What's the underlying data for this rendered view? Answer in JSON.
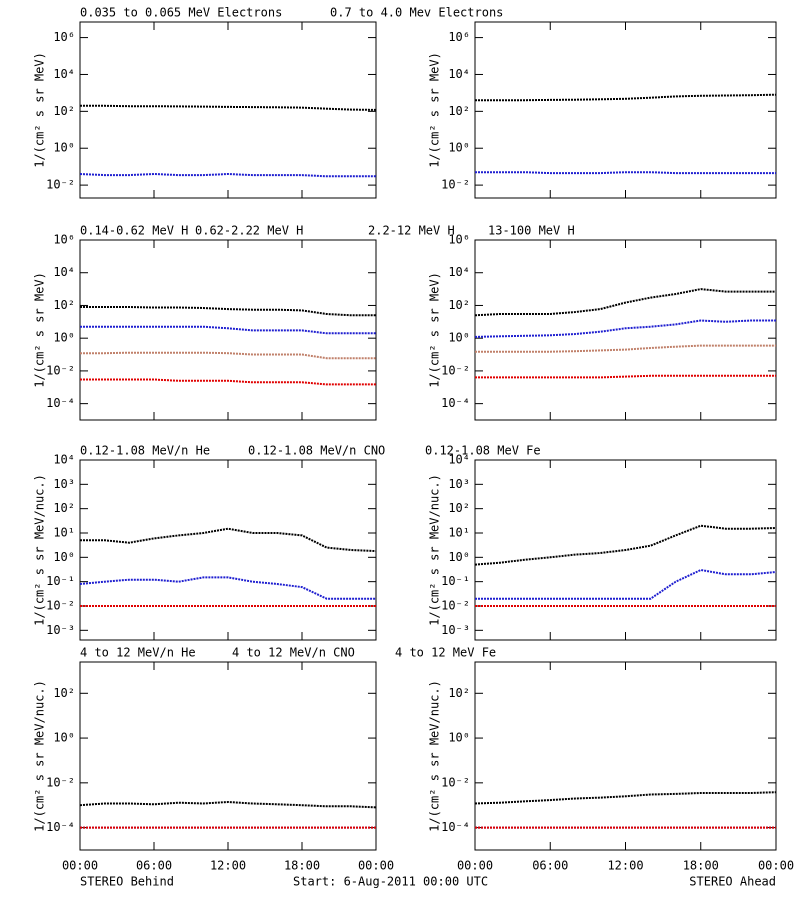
{
  "panels": [
    "STEREO Behind",
    "STEREO Ahead"
  ],
  "start": "Start:  6-Aug-2011 00:00 UTC",
  "chart_data": [
    {
      "type": "scatter",
      "log_y": true,
      "ylabel": "1/(cm² s sr MeV)",
      "x": [
        0,
        2,
        4,
        6,
        8,
        10,
        12,
        14,
        16,
        18,
        20,
        22,
        24
      ],
      "xlim": [
        0,
        24
      ],
      "xticks": [
        0,
        6,
        12,
        18,
        24
      ],
      "ylim": [
        0.002,
        7000000
      ],
      "yticks": [
        {
          "value": 0.01,
          "label": "10⁻²"
        },
        {
          "value": 1,
          "label": "10⁰"
        },
        {
          "value": 100,
          "label": "10²"
        },
        {
          "value": 10000,
          "label": "10⁴"
        },
        {
          "value": 1000000,
          "label": "10⁶"
        }
      ],
      "series": [
        {
          "name": "0.035 to 0.065 MeV Electrons",
          "color": "#000000",
          "values": [
            [
              200,
              200,
              190,
              190,
              185,
              180,
              175,
              170,
              165,
              160,
              140,
              125,
              120
            ],
            [
              400,
              400,
              400,
              420,
              430,
              450,
              480,
              550,
              650,
              700,
              720,
              750,
              800
            ]
          ]
        },
        {
          "name": "0.7 to 4.0 Mev Electrons",
          "color": "#1f1fd0",
          "values": [
            [
              0.04,
              0.035,
              0.035,
              0.04,
              0.035,
              0.035,
              0.04,
              0.035,
              0.035,
              0.035,
              0.03,
              0.03,
              0.03
            ],
            [
              0.05,
              0.05,
              0.05,
              0.045,
              0.045,
              0.045,
              0.05,
              0.05,
              0.045,
              0.045,
              0.045,
              0.045,
              0.045
            ]
          ]
        }
      ]
    },
    {
      "type": "scatter",
      "log_y": true,
      "ylabel": "1/(cm² s sr MeV)",
      "x": [
        0,
        2,
        4,
        6,
        8,
        10,
        12,
        14,
        16,
        18,
        20,
        22,
        24
      ],
      "xlim": [
        0,
        24
      ],
      "xticks": [
        0,
        6,
        12,
        18,
        24
      ],
      "ylim": [
        1e-05,
        1000000
      ],
      "yticks": [
        {
          "value": 0.0001,
          "label": "10⁻⁴"
        },
        {
          "value": 0.01,
          "label": "10⁻²"
        },
        {
          "value": 1,
          "label": "10⁰"
        },
        {
          "value": 100,
          "label": "10²"
        },
        {
          "value": 10000,
          "label": "10⁴"
        },
        {
          "value": 1000000,
          "label": "10⁶"
        }
      ],
      "series": [
        {
          "name": "0.14-0.62 MeV H",
          "color": "#000000",
          "values": [
            [
              80,
              80,
              80,
              75,
              75,
              70,
              60,
              55,
              55,
              50,
              30,
              25,
              25
            ],
            [
              25,
              30,
              30,
              30,
              40,
              60,
              150,
              300,
              500,
              1000,
              700,
              700,
              700
            ]
          ]
        },
        {
          "name": "0.62-2.22 MeV H",
          "color": "#1f1fd0",
          "values": [
            [
              5,
              5,
              5,
              5,
              5,
              5,
              4,
              3,
              3,
              3,
              2,
              2,
              2
            ],
            [
              1.2,
              1.3,
              1.4,
              1.5,
              1.8,
              2.5,
              4,
              5,
              7,
              12,
              10,
              12,
              12
            ]
          ]
        },
        {
          "name": "2.2-12 MeV H",
          "color": "#c0806a",
          "values": [
            [
              0.12,
              0.12,
              0.13,
              0.13,
              0.13,
              0.13,
              0.12,
              0.1,
              0.1,
              0.1,
              0.06,
              0.06,
              0.06
            ],
            [
              0.15,
              0.15,
              0.15,
              0.15,
              0.16,
              0.18,
              0.2,
              0.25,
              0.3,
              0.35,
              0.35,
              0.35,
              0.35
            ]
          ]
        },
        {
          "name": "13-100 MeV H",
          "color": "#e00000",
          "values": [
            [
              0.003,
              0.003,
              0.003,
              0.003,
              0.0025,
              0.0025,
              0.0025,
              0.002,
              0.002,
              0.002,
              0.0015,
              0.0015,
              0.0015
            ],
            [
              0.004,
              0.004,
              0.004,
              0.004,
              0.004,
              0.004,
              0.0045,
              0.005,
              0.005,
              0.005,
              0.005,
              0.005,
              0.005
            ]
          ]
        }
      ]
    },
    {
      "type": "scatter",
      "log_y": true,
      "ylabel": "1/(cm² s sr MeV/nuc.)",
      "x": [
        0,
        2,
        4,
        6,
        8,
        10,
        12,
        14,
        16,
        18,
        20,
        22,
        24
      ],
      "xlim": [
        0,
        24
      ],
      "xticks": [
        0,
        6,
        12,
        18,
        24
      ],
      "ylim": [
        0.0004,
        10000
      ],
      "yticks": [
        {
          "value": 0.001,
          "label": "10⁻³"
        },
        {
          "value": 0.01,
          "label": "10⁻²"
        },
        {
          "value": 0.1,
          "label": "10⁻¹"
        },
        {
          "value": 1,
          "label": "10⁰"
        },
        {
          "value": 10,
          "label": "10¹"
        },
        {
          "value": 100,
          "label": "10²"
        },
        {
          "value": 1000,
          "label": "10³"
        },
        {
          "value": 10000,
          "label": "10⁴"
        }
      ],
      "series": [
        {
          "name": "0.12-1.08 MeV/n He",
          "color": "#000000",
          "values": [
            [
              5,
              5,
              4,
              6,
              8,
              10,
              15,
              10,
              10,
              8,
              2.5,
              2,
              1.8
            ],
            [
              0.5,
              0.6,
              0.8,
              1,
              1.3,
              1.5,
              2,
              3,
              8,
              20,
              15,
              15,
              16
            ]
          ]
        },
        {
          "name": "0.12-1.08 MeV/n CNO",
          "color": "#1f1fd0",
          "values": [
            [
              0.08,
              0.1,
              0.12,
              0.12,
              0.1,
              0.15,
              0.15,
              0.1,
              0.08,
              0.06,
              0.02,
              0.02,
              0.02
            ],
            [
              0.02,
              0.02,
              0.02,
              0.02,
              0.02,
              0.02,
              0.02,
              0.02,
              0.1,
              0.3,
              0.2,
              0.2,
              0.25
            ]
          ]
        },
        {
          "name": "0.12-1.08 MeV Fe",
          "color": "#e00000",
          "values": [
            [
              0.01,
              0.01,
              0.01,
              0.01,
              0.01,
              0.01,
              0.01,
              0.01,
              0.01,
              0.01,
              0.01,
              0.01,
              0.01
            ],
            [
              0.01,
              0.01,
              0.01,
              0.01,
              0.01,
              0.01,
              0.01,
              0.01,
              0.01,
              0.01,
              0.01,
              0.01,
              0.01
            ]
          ]
        }
      ]
    },
    {
      "type": "scatter",
      "log_y": true,
      "ylabel": "1/(cm² s sr MeV/nuc.)",
      "x": [
        0,
        2,
        4,
        6,
        8,
        10,
        12,
        14,
        16,
        18,
        20,
        22,
        24
      ],
      "xlim": [
        0,
        24
      ],
      "xticks": [
        {
          "value": 0,
          "label": "00:00"
        },
        {
          "value": 6,
          "label": "06:00"
        },
        {
          "value": 12,
          "label": "12:00"
        },
        {
          "value": 18,
          "label": "18:00"
        },
        {
          "value": 24,
          "label": "00:00"
        }
      ],
      "ylim": [
        1e-05,
        2500
      ],
      "yticks": [
        {
          "value": 0.0001,
          "label": "10⁻⁴"
        },
        {
          "value": 0.01,
          "label": "10⁻²"
        },
        {
          "value": 1,
          "label": "10⁰"
        },
        {
          "value": 100,
          "label": "10²"
        }
      ],
      "series": [
        {
          "name": "4 to 12 MeV/n He",
          "color": "#000000",
          "values": [
            [
              0.001,
              0.0012,
              0.0012,
              0.0011,
              0.0013,
              0.0012,
              0.0014,
              0.0012,
              0.0011,
              0.001,
              0.0009,
              0.0009,
              0.0008
            ],
            [
              0.0012,
              0.0013,
              0.0015,
              0.0017,
              0.002,
              0.0022,
              0.0025,
              0.003,
              0.0032,
              0.0035,
              0.0035,
              0.0035,
              0.0038
            ]
          ]
        },
        {
          "name": "4 to 12 MeV/n CNO",
          "color": "#1f1fd0",
          "values": [
            [
              0.0001,
              0.0001,
              0.0001,
              0.0001,
              0.0001,
              0.0001,
              0.0001,
              0.0001,
              0.0001,
              0.0001,
              0.0001,
              0.0001,
              0.0001
            ],
            [
              0.0001,
              0.0001,
              0.0001,
              0.0001,
              0.0001,
              0.0001,
              0.0001,
              0.0001,
              0.0001,
              0.0001,
              0.0001,
              0.0001,
              0.0001
            ]
          ]
        },
        {
          "name": "4 to 12 MeV Fe",
          "color": "#e00000",
          "values": [
            [
              0.0001,
              0.0001,
              0.0001,
              0.0001,
              0.0001,
              0.0001,
              0.0001,
              0.0001,
              0.0001,
              0.0001,
              0.0001,
              0.0001,
              0.0001
            ],
            [
              0.0001,
              0.0001,
              0.0001,
              0.0001,
              0.0001,
              0.0001,
              0.0001,
              0.0001,
              0.0001,
              0.0001,
              0.0001,
              0.0001,
              0.0001
            ]
          ]
        }
      ]
    }
  ]
}
